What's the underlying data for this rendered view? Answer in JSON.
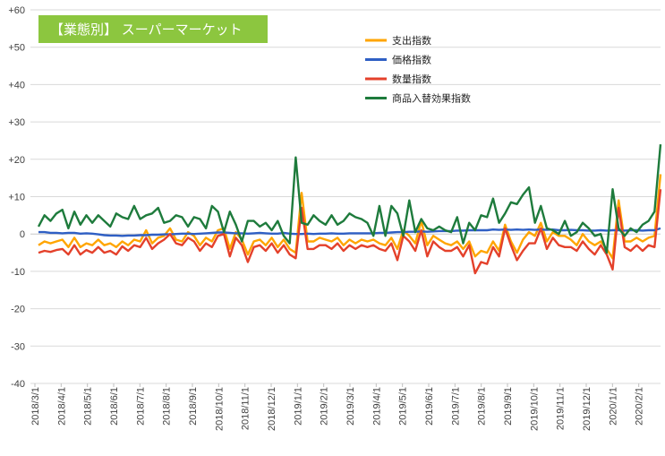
{
  "chart_data": {
    "type": "line",
    "title": "【業態別】 スーパーマーケット",
    "title_bg": "#8cc63f",
    "xlabel": "",
    "ylabel": "",
    "ylim": [
      -40,
      60
    ],
    "y_ticks": [
      -40,
      -30,
      -20,
      -10,
      0,
      10,
      20,
      30,
      40,
      50,
      60
    ],
    "y_tick_labels": [
      "-40",
      "-30",
      "-20",
      "-10",
      "0",
      "+10",
      "+20",
      "+30",
      "+40",
      "+50",
      "+60"
    ],
    "x_start": "2018/3/1",
    "x_end": "2020/3/1",
    "x_tick_labels": [
      "2018/3/1",
      "2018/4/1",
      "2018/5/1",
      "2018/6/1",
      "2018/7/1",
      "2018/8/1",
      "2018/9/1",
      "2018/10/1",
      "2018/11/1",
      "2018/12/1",
      "2019/1/1",
      "2019/2/1",
      "2019/3/1",
      "2019/4/1",
      "2019/5/1",
      "2019/6/1",
      "2019/7/1",
      "2019/8/1",
      "2019/9/1",
      "2019/10/1",
      "2019/11/1",
      "2019/12/1",
      "2020/1/1",
      "2020/2/1"
    ],
    "grid": "horizontal",
    "legend_position": "top-right",
    "series": [
      {
        "name": "支出指数",
        "color": "#ffa500",
        "values": [
          -3.0,
          -2.0,
          -2.5,
          -2.0,
          -1.5,
          -3.5,
          -1.0,
          -3.5,
          -2.5,
          -3.0,
          -1.5,
          -3.0,
          -2.5,
          -3.5,
          -2.0,
          -3.0,
          -1.5,
          -2.0,
          1.0,
          -2.5,
          -1.0,
          -0.5,
          1.5,
          -1.5,
          -2.0,
          0.5,
          -0.5,
          -3.0,
          -1.0,
          -2.0,
          1.0,
          1.5,
          -4.0,
          0.5,
          -1.5,
          -5.5,
          -2.0,
          -1.5,
          -3.0,
          -1.0,
          -3.5,
          -1.5,
          -4.0,
          -5.0,
          11.0,
          -2.0,
          -2.0,
          -1.0,
          -1.5,
          -2.0,
          -1.0,
          -3.0,
          -1.5,
          -2.5,
          -1.5,
          -2.0,
          -1.5,
          -2.5,
          -3.0,
          -1.0,
          -4.0,
          1.0,
          -0.5,
          -2.5,
          3.5,
          -3.0,
          -0.5,
          -1.5,
          -2.5,
          -3.0,
          -2.0,
          -4.0,
          -2.0,
          -6.0,
          -4.5,
          -5.0,
          -2.0,
          -4.5,
          2.5,
          -2.0,
          -5.0,
          -1.5,
          0.5,
          -0.5,
          3.0,
          -2.0,
          0.5,
          -0.5,
          -0.5,
          -1.5,
          -3.0,
          0.0,
          -2.0,
          -3.0,
          -2.0,
          -4.0,
          -6.5,
          9.0,
          -2.0,
          -2.0,
          -1.0,
          -2.0,
          -1.0,
          -0.5,
          16.0
        ]
      },
      {
        "name": "価格指数",
        "color": "#2f5fc4",
        "values": [
          0.5,
          0.5,
          0.3,
          0.3,
          0.2,
          0.3,
          0.3,
          0.1,
          0.2,
          0.1,
          -0.1,
          -0.3,
          -0.4,
          -0.4,
          -0.5,
          -0.4,
          -0.4,
          -0.3,
          -0.3,
          -0.2,
          -0.2,
          -0.1,
          -0.1,
          0.0,
          0.1,
          0.1,
          0.0,
          0.1,
          0.2,
          0.3,
          0.4,
          0.4,
          0.3,
          0.2,
          0.2,
          0.1,
          0.2,
          0.3,
          0.2,
          0.1,
          0.1,
          0.3,
          0.1,
          0.0,
          0.0,
          0.1,
          0.0,
          0.1,
          0.1,
          0.2,
          0.1,
          0.1,
          0.2,
          0.2,
          0.2,
          0.2,
          0.2,
          0.3,
          0.3,
          0.4,
          0.5,
          0.5,
          0.6,
          0.6,
          0.7,
          0.6,
          0.7,
          0.8,
          0.8,
          0.8,
          0.9,
          0.9,
          1.0,
          1.0,
          1.0,
          1.0,
          1.2,
          1.1,
          1.2,
          1.1,
          1.2,
          1.1,
          1.2,
          1.1,
          1.2,
          1.1,
          1.2,
          1.0,
          1.0,
          1.1,
          1.0,
          1.0,
          0.9,
          0.9,
          1.0,
          0.9,
          1.0,
          1.0,
          0.9,
          1.0,
          1.0,
          0.9,
          1.0,
          1.0,
          1.5
        ]
      },
      {
        "name": "数量指数",
        "color": "#e4412b",
        "values": [
          -5.0,
          -4.5,
          -4.8,
          -4.3,
          -4.0,
          -5.5,
          -3.0,
          -5.5,
          -4.3,
          -5.0,
          -3.5,
          -5.0,
          -4.5,
          -5.5,
          -3.3,
          -4.5,
          -3.0,
          -3.5,
          -1.0,
          -4.0,
          -2.5,
          -1.5,
          0.0,
          -2.5,
          -3.0,
          -1.0,
          -2.0,
          -4.5,
          -2.5,
          -3.5,
          -0.5,
          0.0,
          -6.0,
          -1.0,
          -3.0,
          -7.5,
          -3.5,
          -3.0,
          -4.5,
          -2.5,
          -5.0,
          -3.0,
          -5.5,
          -6.5,
          7.0,
          -4.0,
          -4.0,
          -3.0,
          -3.0,
          -4.0,
          -2.5,
          -4.5,
          -3.0,
          -4.0,
          -3.0,
          -3.5,
          -3.0,
          -4.0,
          -4.5,
          -2.5,
          -7.0,
          -0.5,
          -2.0,
          -4.5,
          1.0,
          -6.0,
          -2.0,
          -3.5,
          -4.5,
          -4.5,
          -3.5,
          -6.0,
          -3.0,
          -10.5,
          -7.5,
          -8.0,
          -3.5,
          -6.0,
          1.5,
          -3.0,
          -7.0,
          -4.5,
          -2.5,
          -2.5,
          1.5,
          -4.0,
          -1.0,
          -3.0,
          -3.5,
          -3.5,
          -4.5,
          -2.0,
          -4.0,
          -5.5,
          -3.0,
          -5.5,
          -9.5,
          7.0,
          -3.5,
          -4.5,
          -3.0,
          -4.5,
          -3.0,
          -3.5,
          12.0
        ]
      },
      {
        "name": "商品入替効果指数",
        "color": "#1e7b3c",
        "values": [
          2.0,
          5.0,
          3.5,
          5.5,
          6.5,
          1.5,
          6.0,
          2.5,
          5.0,
          3.0,
          5.0,
          3.5,
          2.0,
          5.5,
          4.5,
          4.0,
          7.5,
          4.0,
          5.0,
          5.5,
          7.0,
          3.0,
          3.5,
          5.0,
          4.5,
          2.0,
          4.5,
          4.0,
          1.5,
          7.5,
          6.0,
          0.5,
          6.0,
          2.5,
          -2.0,
          3.5,
          3.5,
          2.0,
          3.0,
          1.0,
          3.5,
          -0.5,
          -2.5,
          20.5,
          3.0,
          2.5,
          5.0,
          3.5,
          2.5,
          5.0,
          2.5,
          3.5,
          5.5,
          4.5,
          4.0,
          3.0,
          -0.5,
          7.5,
          -0.5,
          7.5,
          5.5,
          -0.5,
          9.0,
          0.5,
          4.0,
          1.5,
          1.0,
          2.0,
          1.0,
          0.5,
          4.5,
          -2.5,
          3.0,
          1.0,
          5.0,
          4.5,
          9.5,
          3.0,
          5.5,
          8.5,
          8.0,
          10.5,
          12.5,
          3.0,
          7.5,
          1.5,
          1.0,
          0.0,
          3.5,
          -0.5,
          0.5,
          3.0,
          1.5,
          -0.5,
          0.0,
          -5.0,
          12.0,
          1.5,
          -0.5,
          1.5,
          0.5,
          2.5,
          3.5,
          6.0,
          24.0
        ]
      }
    ]
  }
}
